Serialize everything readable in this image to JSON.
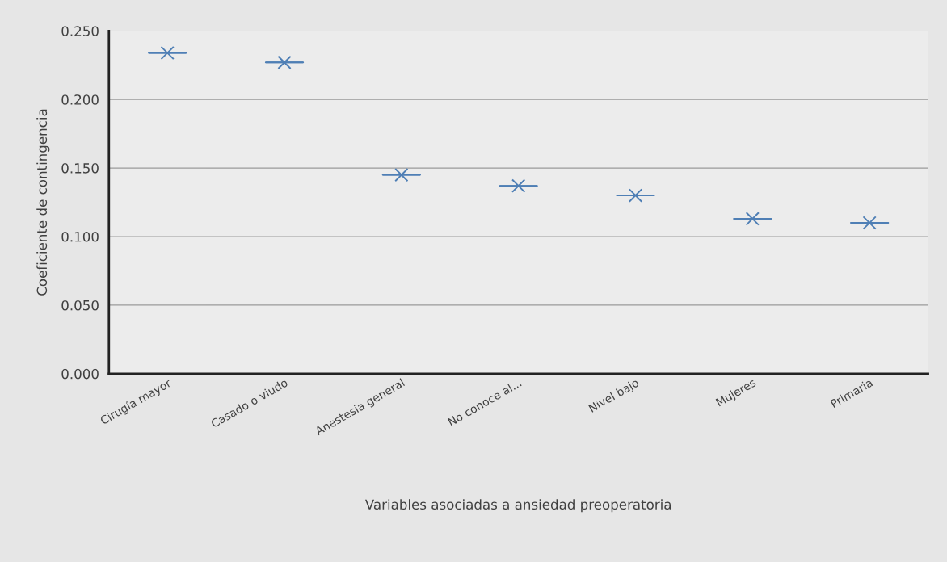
{
  "chart_data": {
    "type": "box",
    "xlabel": "Variables asociadas a ansiedad preoperatoria",
    "ylabel": "Coeficiente de contingencia",
    "categories": [
      "Cirugía mayor",
      "Casado o viudo",
      "Anestesia general",
      "No conoce al...",
      "Nivel bajo",
      "Mujeres",
      "Primaria"
    ],
    "color": "#4f7fb5",
    "boxes": [
      {
        "low": 0.234,
        "q1": 0.234,
        "median": 0.234,
        "q3": 0.234,
        "high": 0.234,
        "mean": 0.234
      },
      {
        "low": 0.227,
        "q1": 0.227,
        "median": 0.227,
        "q3": 0.227,
        "high": 0.227,
        "mean": 0.227
      },
      {
        "low": 0.145,
        "q1": 0.145,
        "median": 0.145,
        "q3": 0.145,
        "high": 0.145,
        "mean": 0.145
      },
      {
        "low": 0.137,
        "q1": 0.137,
        "median": 0.137,
        "q3": 0.137,
        "high": 0.137,
        "mean": 0.137
      },
      {
        "low": 0.13,
        "q1": 0.13,
        "median": 0.13,
        "q3": 0.13,
        "high": 0.13,
        "mean": 0.13
      },
      {
        "low": 0.113,
        "q1": 0.113,
        "median": 0.113,
        "q3": 0.113,
        "high": 0.113,
        "mean": 0.113
      },
      {
        "low": 0.11,
        "q1": 0.11,
        "median": 0.11,
        "q3": 0.11,
        "high": 0.11,
        "mean": 0.11
      }
    ],
    "ylim": [
      0,
      0.25
    ],
    "yticks": [
      {
        "value": 0,
        "label": "0.000"
      },
      {
        "value": 0.05,
        "label": "0.050"
      },
      {
        "value": 0.1,
        "label": "0.100"
      },
      {
        "value": 0.15,
        "label": "0.150"
      },
      {
        "value": 0.2,
        "label": "0.200"
      },
      {
        "value": 0.25,
        "label": "0.250"
      }
    ],
    "grid": "y",
    "marker": "cross"
  }
}
